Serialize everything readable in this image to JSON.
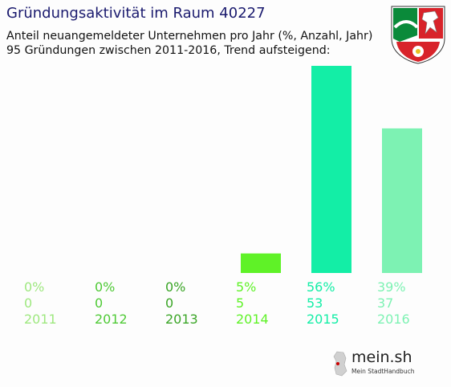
{
  "title": "Gründungsaktivität im Raum 40227",
  "subtitle_line1": "Anteil neuangemeldeter Unternehmen pro Jahr (%, Anzahl, Jahr)",
  "subtitle_line2": "95 Gründungen zwischen 2011-2016, Trend aufsteigend:",
  "logo": {
    "name": "mein.sh",
    "tagline": "Mein StadtHandbuch"
  },
  "chart_data": {
    "type": "bar",
    "categories": [
      "2011",
      "2012",
      "2013",
      "2014",
      "2015",
      "2016"
    ],
    "values": [
      0,
      0,
      0,
      5,
      53,
      37
    ],
    "percent_labels": [
      "0%",
      "0%",
      "0%",
      "5%",
      "56%",
      "39%"
    ],
    "count_labels": [
      "0",
      "0",
      "0",
      "5",
      "53",
      "37"
    ],
    "colors": [
      "#9ee87f",
      "#4fca36",
      "#3aa526",
      "#5ff227",
      "#13eea6",
      "#7df2b3"
    ],
    "ylim": [
      0,
      53
    ],
    "grid": false,
    "legend": "none"
  }
}
